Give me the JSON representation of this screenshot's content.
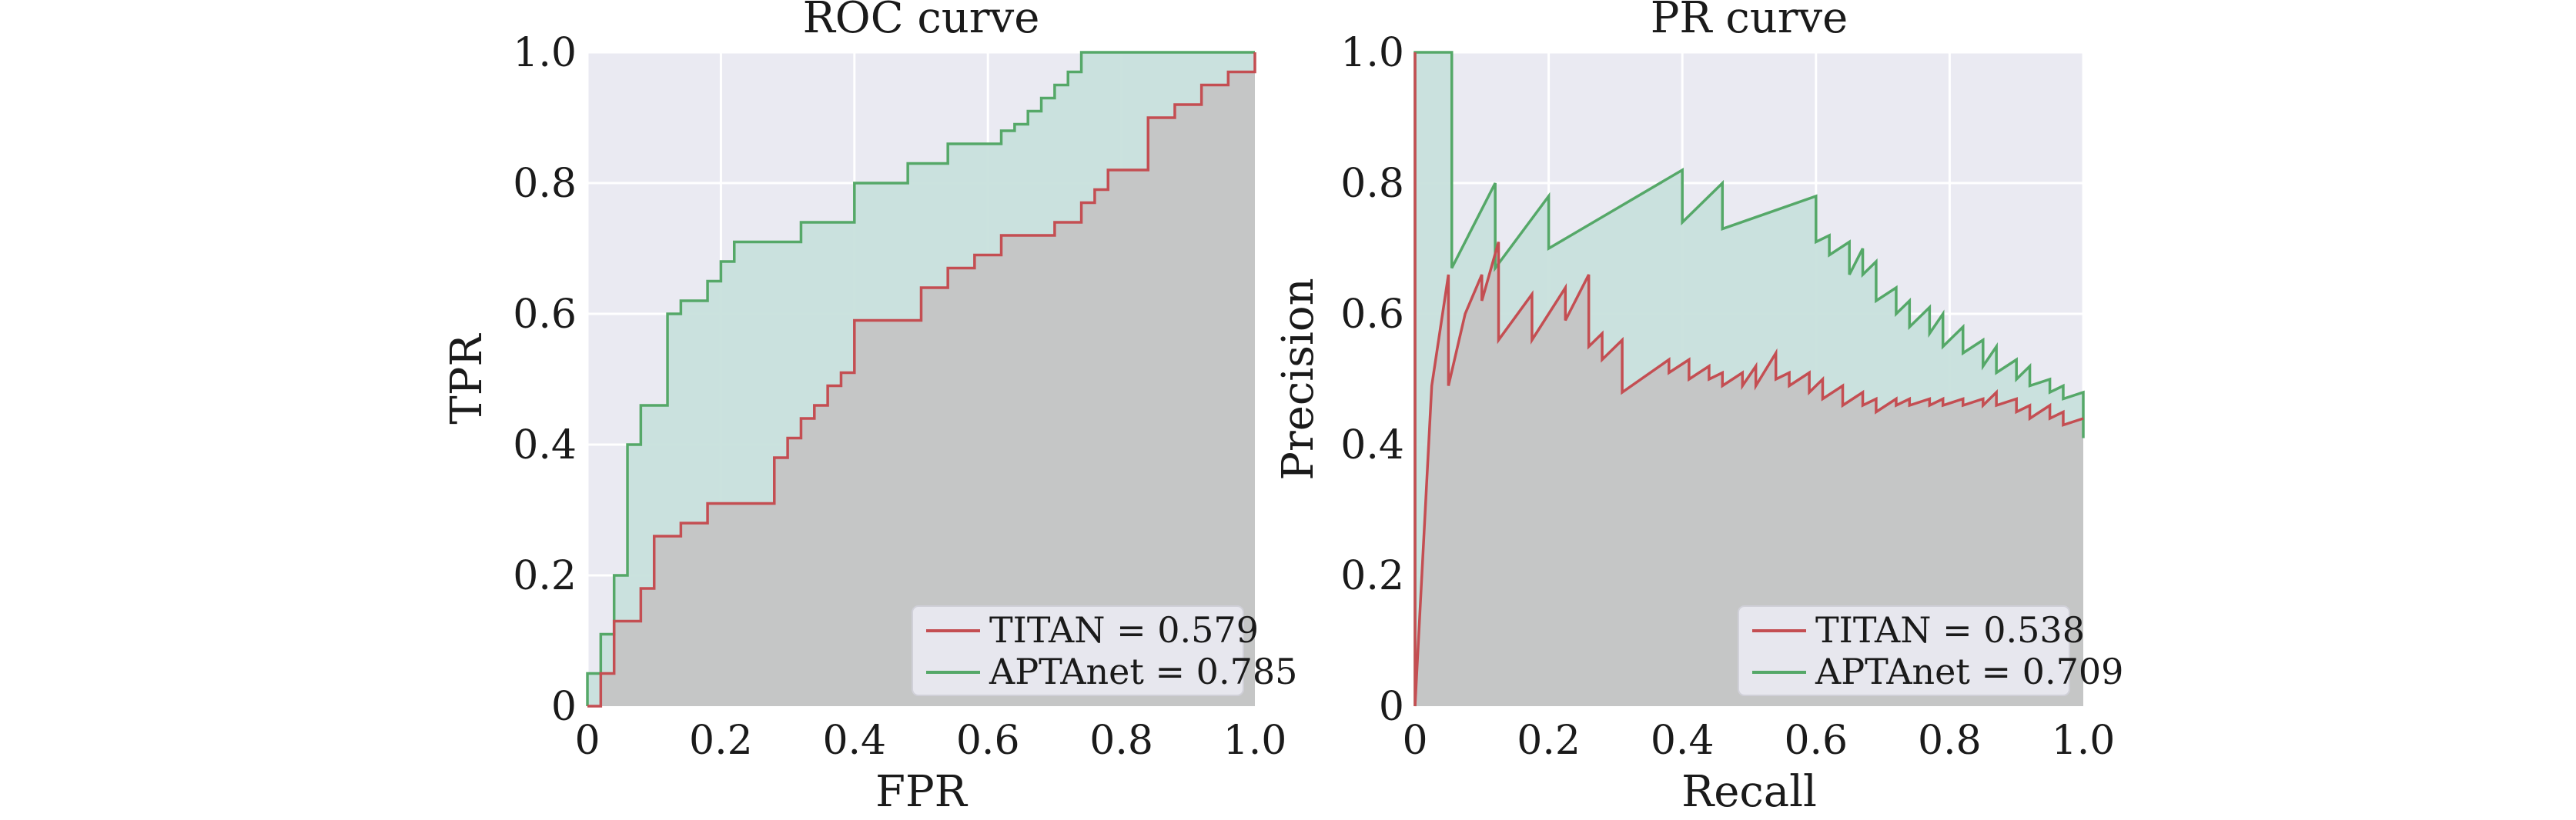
{
  "chart_data": [
    {
      "type": "line",
      "title": "ROC curve",
      "xlabel": "FPR",
      "ylabel": "TPR",
      "xlim": [
        0,
        1
      ],
      "ylim": [
        0,
        1
      ],
      "x_ticks": [
        0,
        0.2,
        0.4,
        0.6,
        0.8,
        1.0
      ],
      "x_tick_labels": [
        "0",
        "0.2",
        "0.4",
        "0.6",
        "0.8",
        "1.0"
      ],
      "y_ticks": [
        0,
        0.2,
        0.4,
        0.6,
        0.8,
        1.0
      ],
      "y_tick_labels": [
        "0",
        "0.2",
        "0.4",
        "0.6",
        "0.8",
        "1.0"
      ],
      "grid": true,
      "filled": true,
      "legend_position": "bottom-right",
      "series": [
        {
          "name": "TITAN",
          "legend_label": "TITAN = 0.579",
          "color": "#c44e52",
          "fill": "#c4c4c4",
          "x": [
            0,
            0.02,
            0.02,
            0.04,
            0.04,
            0.08,
            0.08,
            0.1,
            0.1,
            0.14,
            0.14,
            0.18,
            0.18,
            0.2,
            0.2,
            0.28,
            0.28,
            0.28,
            0.28,
            0.3,
            0.3,
            0.32,
            0.32,
            0.34,
            0.34,
            0.36,
            0.36,
            0.38,
            0.38,
            0.4,
            0.4,
            0.4,
            0.4,
            0.5,
            0.5,
            0.54,
            0.54,
            0.58,
            0.58,
            0.62,
            0.62,
            0.7,
            0.7,
            0.74,
            0.74,
            0.76,
            0.76,
            0.78,
            0.78,
            0.84,
            0.84,
            0.88,
            0.88,
            0.92,
            0.92,
            0.96,
            0.96,
            1.0,
            1.0
          ],
          "y": [
            0,
            0,
            0.05,
            0.05,
            0.13,
            0.13,
            0.18,
            0.18,
            0.26,
            0.26,
            0.28,
            0.28,
            0.31,
            0.31,
            0.31,
            0.31,
            0.34,
            0.36,
            0.38,
            0.38,
            0.41,
            0.41,
            0.44,
            0.44,
            0.46,
            0.46,
            0.49,
            0.49,
            0.51,
            0.51,
            0.54,
            0.56,
            0.59,
            0.59,
            0.64,
            0.64,
            0.67,
            0.67,
            0.69,
            0.69,
            0.72,
            0.72,
            0.74,
            0.74,
            0.77,
            0.77,
            0.79,
            0.79,
            0.82,
            0.82,
            0.9,
            0.9,
            0.92,
            0.92,
            0.95,
            0.95,
            0.97,
            0.97,
            1.0
          ]
        },
        {
          "name": "APTAnet",
          "legend_label": "APTAnet = 0.785",
          "color": "#55a868",
          "fill": "#c8e0dc",
          "x": [
            0,
            0,
            0.02,
            0.02,
            0.04,
            0.04,
            0.06,
            0.06,
            0.08,
            0.08,
            0.12,
            0.12,
            0.14,
            0.14,
            0.18,
            0.18,
            0.2,
            0.2,
            0.22,
            0.22,
            0.26,
            0.26,
            0.32,
            0.32,
            0.4,
            0.4,
            0.48,
            0.48,
            0.54,
            0.54,
            0.62,
            0.62,
            0.64,
            0.64,
            0.66,
            0.66,
            0.68,
            0.68,
            0.7,
            0.7,
            0.72,
            0.72,
            0.74,
            0.74,
            1.0,
            1.0
          ],
          "y": [
            0,
            0.05,
            0.05,
            0.11,
            0.11,
            0.2,
            0.2,
            0.4,
            0.4,
            0.46,
            0.46,
            0.6,
            0.6,
            0.62,
            0.62,
            0.65,
            0.65,
            0.68,
            0.68,
            0.71,
            0.71,
            0.71,
            0.71,
            0.74,
            0.74,
            0.8,
            0.8,
            0.83,
            0.83,
            0.86,
            0.86,
            0.88,
            0.88,
            0.89,
            0.89,
            0.91,
            0.91,
            0.93,
            0.93,
            0.95,
            0.95,
            0.97,
            0.97,
            1.0,
            1.0,
            1.0
          ]
        }
      ]
    },
    {
      "type": "line",
      "title": "PR curve",
      "xlabel": "Recall",
      "ylabel": "Precision",
      "xlim": [
        0,
        1
      ],
      "ylim": [
        0,
        1
      ],
      "x_ticks": [
        0,
        0.2,
        0.4,
        0.6,
        0.8,
        1.0
      ],
      "x_tick_labels": [
        "0",
        "0.2",
        "0.4",
        "0.6",
        "0.8",
        "1.0"
      ],
      "y_ticks": [
        0,
        0.2,
        0.4,
        0.6,
        0.8,
        1.0
      ],
      "y_tick_labels": [
        "0",
        "0.2",
        "0.4",
        "0.6",
        "0.8",
        "1.0"
      ],
      "grid": true,
      "filled": true,
      "legend_position": "bottom-right",
      "series": [
        {
          "name": "TITAN",
          "legend_label": "TITAN = 0.538",
          "color": "#c44e52",
          "fill": "#c4c4c4",
          "x": [
            0,
            0,
            0,
            0.025,
            0.025,
            0.05,
            0.05,
            0.075,
            0.1,
            0.1,
            0.125,
            0.125,
            0.175,
            0.175,
            0.225,
            0.225,
            0.26,
            0.26,
            0.28,
            0.28,
            0.31,
            0.31,
            0.38,
            0.38,
            0.41,
            0.41,
            0.44,
            0.44,
            0.46,
            0.46,
            0.49,
            0.49,
            0.51,
            0.51,
            0.54,
            0.54,
            0.56,
            0.56,
            0.59,
            0.59,
            0.61,
            0.61,
            0.64,
            0.64,
            0.67,
            0.67,
            0.69,
            0.69,
            0.72,
            0.72,
            0.74,
            0.74,
            0.77,
            0.77,
            0.79,
            0.79,
            0.82,
            0.82,
            0.85,
            0.85,
            0.87,
            0.87,
            0.9,
            0.9,
            0.92,
            0.92,
            0.95,
            0.95,
            0.97,
            0.97,
            1.0
          ],
          "y": [
            1.0,
            0,
            0,
            0.49,
            0.49,
            0.66,
            0.49,
            0.6,
            0.66,
            0.62,
            0.71,
            0.56,
            0.63,
            0.56,
            0.64,
            0.59,
            0.66,
            0.55,
            0.57,
            0.53,
            0.56,
            0.48,
            0.53,
            0.51,
            0.53,
            0.5,
            0.52,
            0.5,
            0.51,
            0.49,
            0.51,
            0.49,
            0.52,
            0.49,
            0.54,
            0.5,
            0.51,
            0.49,
            0.51,
            0.48,
            0.5,
            0.47,
            0.49,
            0.46,
            0.48,
            0.46,
            0.47,
            0.45,
            0.47,
            0.46,
            0.47,
            0.46,
            0.47,
            0.46,
            0.47,
            0.46,
            0.47,
            0.46,
            0.47,
            0.46,
            0.48,
            0.46,
            0.47,
            0.45,
            0.46,
            0.44,
            0.46,
            0.44,
            0.45,
            0.43,
            0.44
          ]
        },
        {
          "name": "APTAnet",
          "legend_label": "APTAnet = 0.709",
          "color": "#55a868",
          "fill": "#c8e0dc",
          "x": [
            0,
            0,
            0.055,
            0.055,
            0.12,
            0.12,
            0.2,
            0.2,
            0.4,
            0.4,
            0.46,
            0.46,
            0.6,
            0.6,
            0.62,
            0.62,
            0.65,
            0.65,
            0.67,
            0.67,
            0.69,
            0.69,
            0.72,
            0.72,
            0.74,
            0.74,
            0.77,
            0.77,
            0.79,
            0.79,
            0.82,
            0.82,
            0.85,
            0.85,
            0.87,
            0.87,
            0.9,
            0.9,
            0.92,
            0.92,
            0.95,
            0.95,
            0.97,
            0.97,
            1.0,
            1.0
          ],
          "y": [
            0,
            1.0,
            1.0,
            0.67,
            0.8,
            0.67,
            0.78,
            0.7,
            0.82,
            0.74,
            0.8,
            0.73,
            0.78,
            0.71,
            0.72,
            0.69,
            0.71,
            0.66,
            0.7,
            0.66,
            0.68,
            0.62,
            0.64,
            0.6,
            0.62,
            0.58,
            0.61,
            0.57,
            0.6,
            0.55,
            0.58,
            0.54,
            0.56,
            0.52,
            0.55,
            0.51,
            0.53,
            0.5,
            0.52,
            0.49,
            0.5,
            0.48,
            0.49,
            0.47,
            0.48,
            0.41
          ]
        }
      ]
    }
  ]
}
